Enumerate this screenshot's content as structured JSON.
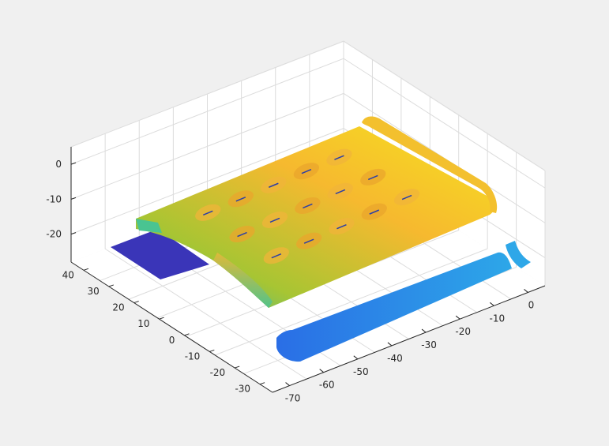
{
  "figure": {
    "background": "#f0f0f0",
    "axes_background": "#ffffff",
    "grid_color": "#dcdcdc",
    "axis_color": "#262626"
  },
  "chart_data": {
    "type": "surface",
    "view": "3d",
    "colormap": "parula",
    "grid": true,
    "xlim": [
      -75,
      5
    ],
    "ylim": [
      -35,
      45
    ],
    "zlim": [
      -28,
      5
    ],
    "xticks": [
      0,
      -10,
      -20,
      -30,
      -40,
      -50,
      -60,
      -70
    ],
    "yticks": [
      40,
      30,
      20,
      10,
      0,
      -10,
      -20,
      -30
    ],
    "zticks": [
      0,
      -10,
      -20
    ],
    "surfaces": [
      {
        "name": "",
        "shape": "plate",
        "z_level": -4,
        "color_range": [
          "#2fb7a7",
          "#f6e21f"
        ],
        "x_range": [
          -70,
          -2
        ],
        "y_range": [
          -18,
          40
        ],
        "dimples": [
          [
            -15,
            30
          ],
          [
            -25,
            30
          ],
          [
            -35,
            30
          ],
          [
            -45,
            30
          ],
          [
            -55,
            30
          ],
          [
            -15,
            15
          ],
          [
            -25,
            15
          ],
          [
            -35,
            15
          ],
          [
            -45,
            15
          ],
          [
            -55,
            15
          ],
          [
            -15,
            0
          ],
          [
            -25,
            0
          ],
          [
            -35,
            0
          ],
          [
            -45,
            0
          ],
          [
            -55,
            0
          ]
        ]
      },
      {
        "name": "",
        "shape": "strip",
        "z_level": -30,
        "color": "#3a3ab8",
        "x_range": [
          -72,
          -42
        ],
        "y_range": [
          35,
          45
        ]
      },
      {
        "name": "",
        "shape": "strip",
        "z_level": -26,
        "color": "#2b8de8",
        "x_range": [
          -68,
          2
        ],
        "y_range": [
          -35,
          -28
        ]
      },
      {
        "name": "",
        "shape": "strip",
        "z_level": -4,
        "color": "#f3c02e",
        "x_range": [
          -3,
          5
        ],
        "y_range": [
          -10,
          42
        ]
      }
    ]
  }
}
